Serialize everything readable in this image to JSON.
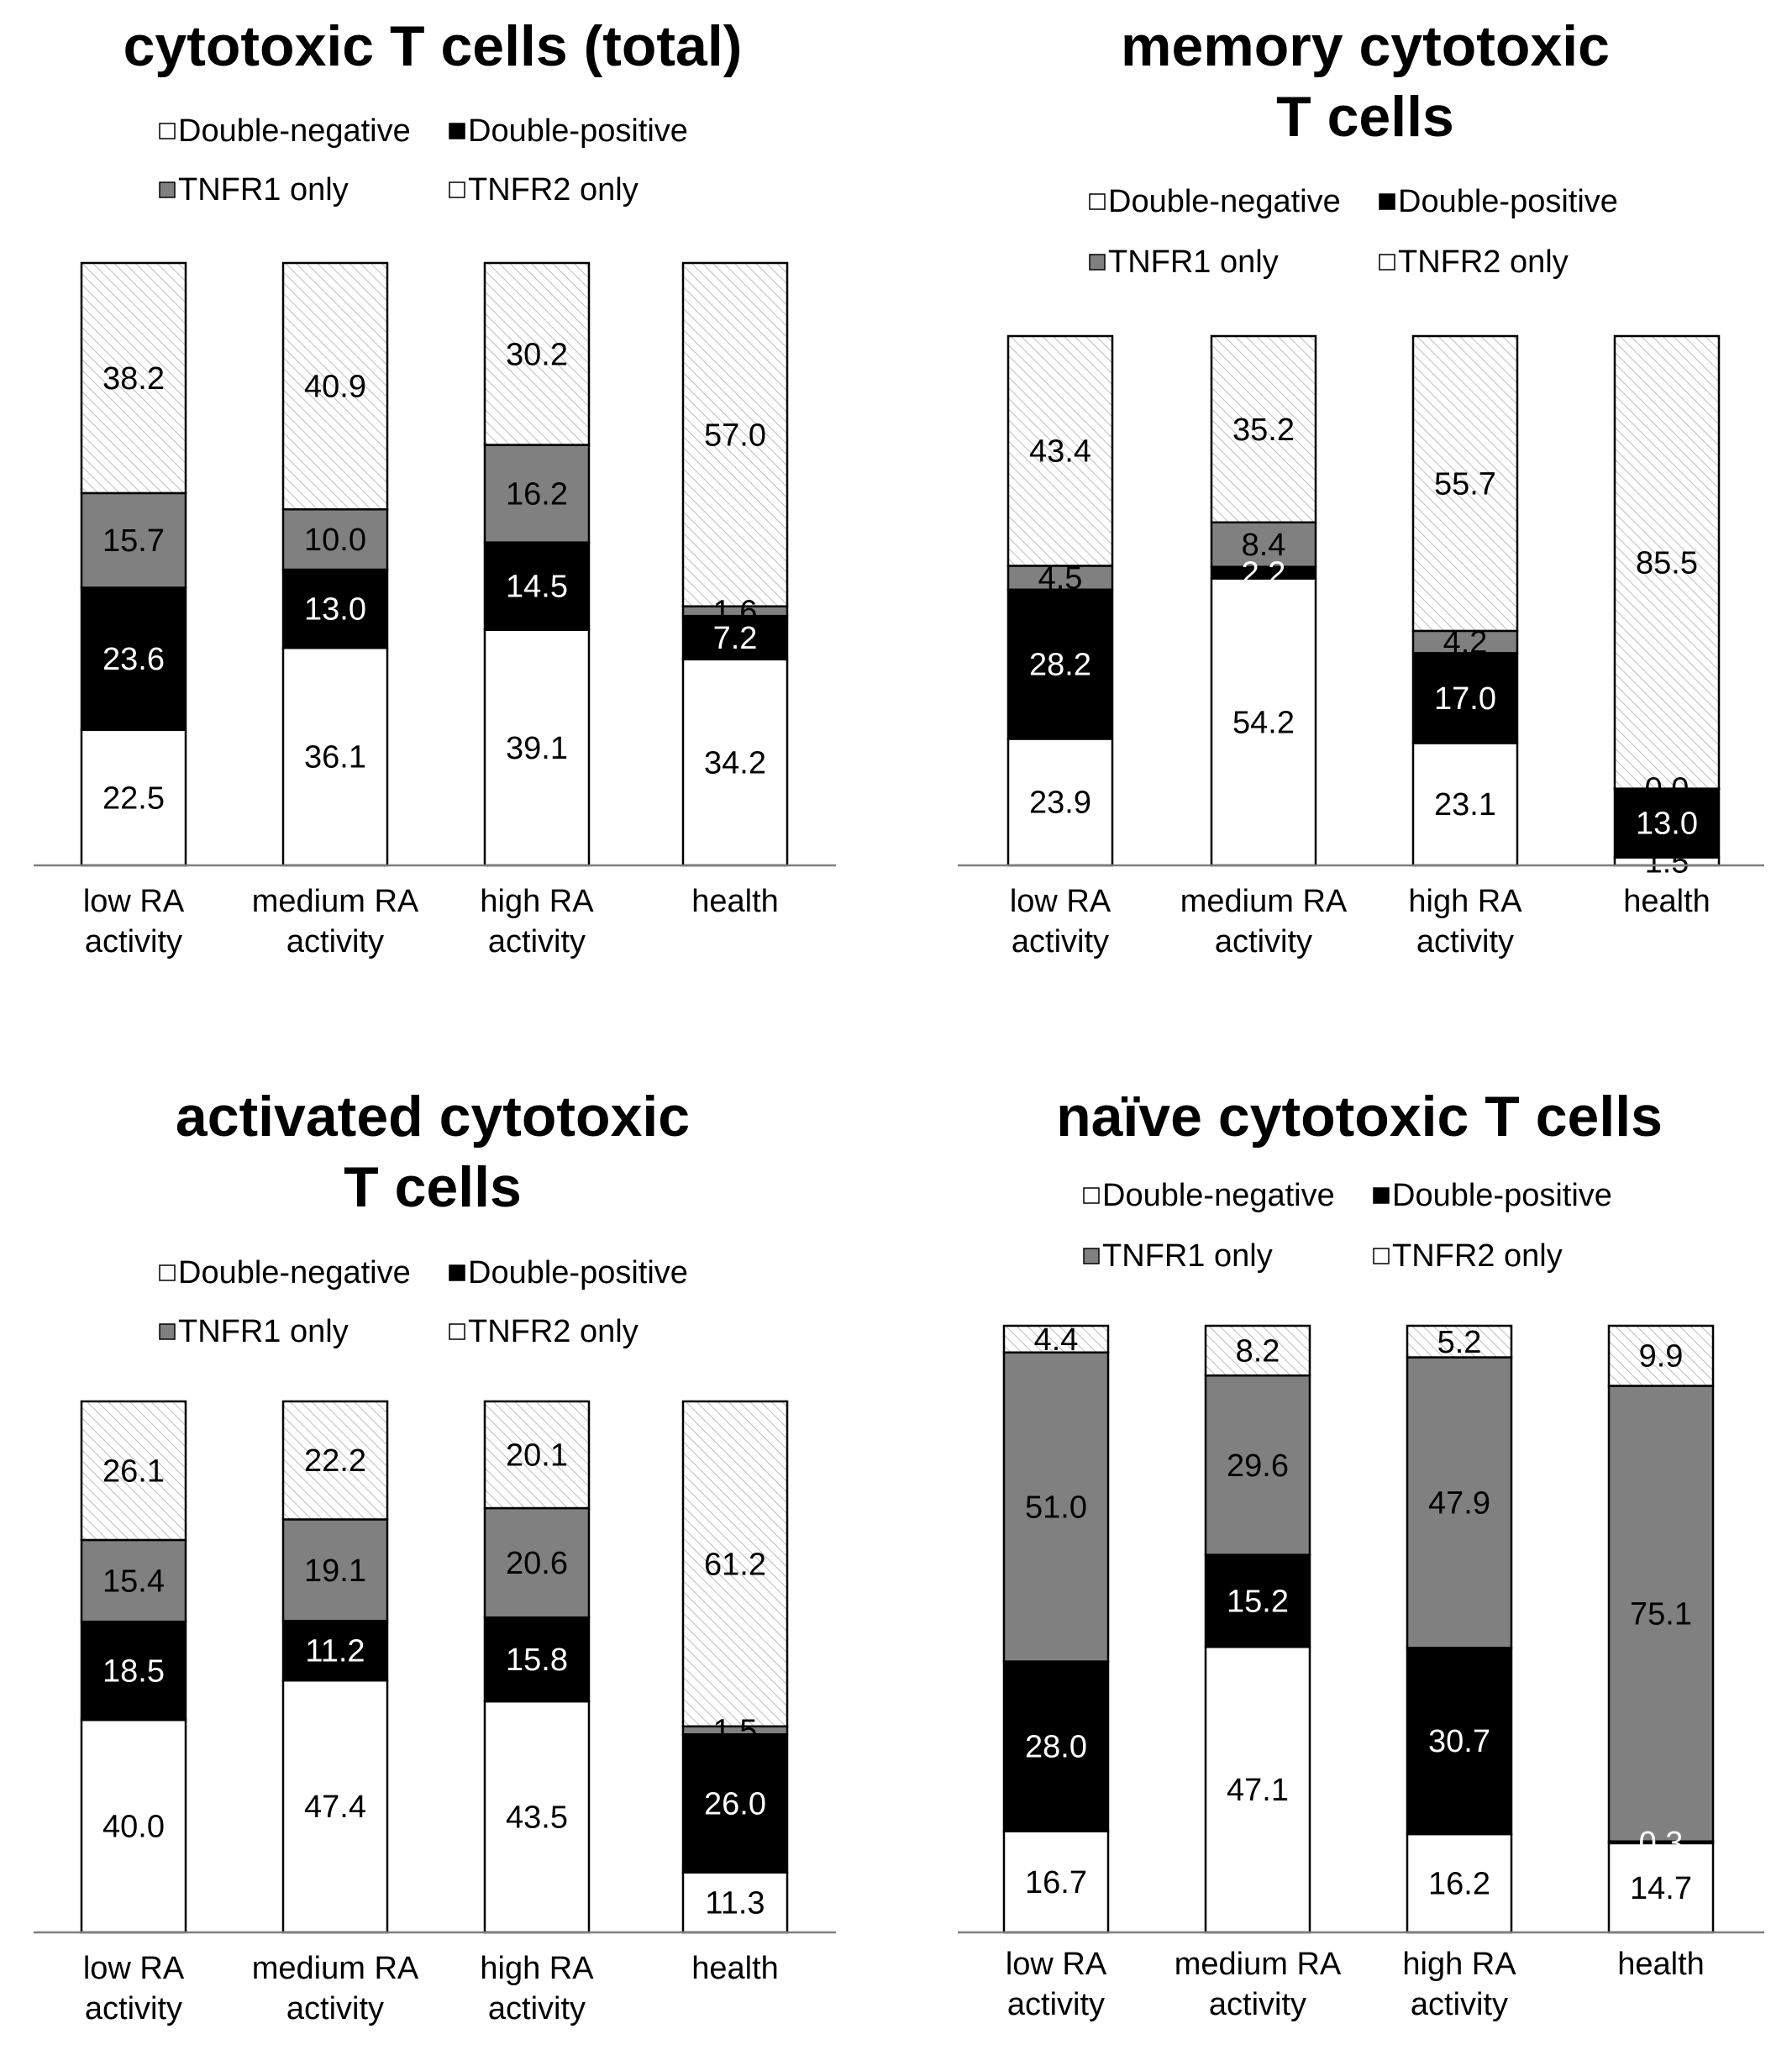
{
  "colors": {
    "double_negative": "#ffffff",
    "double_positive": "#000000",
    "tnfr1_only": "#808080",
    "tnfr2_only_fill": "#ffffff",
    "tnfr2_only_hatch": "#bdbdbd",
    "axis": "#7f7f7f",
    "outline": "#000000"
  },
  "chart_data": [
    {
      "type": "bar",
      "stacked": true,
      "title": "cytotoxic T cells (total)",
      "title_lines": [
        "cytotoxic T cells (total)"
      ],
      "legend": [
        "Double-negative",
        "Double-positive",
        "TNFR1 only",
        "TNFR2 only"
      ],
      "legend_position": "top",
      "categories": [
        [
          "low RA",
          "activity"
        ],
        [
          "medium RA",
          "activity"
        ],
        [
          "high RA",
          "activity"
        ],
        [
          "health"
        ]
      ],
      "ylim": [
        0,
        100
      ],
      "series": [
        {
          "name": "Double-negative",
          "values": [
            22.5,
            36.1,
            39.1,
            34.2
          ],
          "labels": [
            "22.5",
            "36.1",
            "39.1",
            "34.2"
          ]
        },
        {
          "name": "Double-positive",
          "values": [
            23.6,
            13.0,
            14.5,
            7.2
          ],
          "labels": [
            "23.6",
            "13.0",
            "14.5",
            "7.2"
          ]
        },
        {
          "name": "TNFR1 only",
          "values": [
            15.7,
            10.0,
            16.2,
            1.6
          ],
          "labels": [
            "15.7",
            "10.0",
            "16.2",
            "1.6"
          ]
        },
        {
          "name": "TNFR2 only",
          "values": [
            38.2,
            40.9,
            30.2,
            57.0
          ],
          "labels": [
            "38.2",
            "40.9",
            "30.2",
            "57.0"
          ]
        }
      ]
    },
    {
      "type": "bar",
      "stacked": true,
      "title": "memory cytotoxic T cells",
      "title_lines": [
        "memory cytotoxic",
        "T cells"
      ],
      "legend": [
        "Double-negative",
        "Double-positive",
        "TNFR1 only",
        "TNFR2 only"
      ],
      "legend_position": "top",
      "categories": [
        [
          "low RA",
          "activity"
        ],
        [
          "medium RA",
          "activity"
        ],
        [
          "high RA",
          "activity"
        ],
        [
          "health"
        ]
      ],
      "ylim": [
        0,
        100
      ],
      "series": [
        {
          "name": "Double-negative",
          "values": [
            23.9,
            54.2,
            23.1,
            1.5
          ],
          "labels": [
            "23.9",
            "54.2",
            "23.1",
            "1.5"
          ]
        },
        {
          "name": "Double-positive",
          "values": [
            28.2,
            2.2,
            17.0,
            13.0
          ],
          "labels": [
            "28.2",
            "2.2",
            "17.0",
            "13.0"
          ]
        },
        {
          "name": "TNFR1 only",
          "values": [
            4.5,
            8.4,
            4.2,
            0.0
          ],
          "labels": [
            "4.5",
            "8.4",
            "4.2",
            "0.0"
          ]
        },
        {
          "name": "TNFR2 only",
          "values": [
            43.4,
            35.2,
            55.7,
            85.5
          ],
          "labels": [
            "43.4",
            "35.2",
            "55.7",
            "85.5"
          ]
        }
      ]
    },
    {
      "type": "bar",
      "stacked": true,
      "title": "activated cytotoxic T cells",
      "title_lines": [
        "activated cytotoxic",
        "T cells"
      ],
      "legend": [
        "Double-negative",
        "Double-positive",
        "TNFR1 only",
        "TNFR2 only"
      ],
      "legend_position": "top",
      "categories": [
        [
          "low RA",
          "activity"
        ],
        [
          "medium RA",
          "activity"
        ],
        [
          "high RA",
          "activity"
        ],
        [
          "health"
        ]
      ],
      "ylim": [
        0,
        100
      ],
      "series": [
        {
          "name": "Double-negative",
          "values": [
            40.0,
            47.4,
            43.5,
            11.3
          ],
          "labels": [
            "40.0",
            "47.4",
            "43.5",
            "11.3"
          ]
        },
        {
          "name": "Double-positive",
          "values": [
            18.5,
            11.2,
            15.8,
            26.0
          ],
          "labels": [
            "18.5",
            "11.2",
            "15.8",
            "26.0"
          ]
        },
        {
          "name": "TNFR1 only",
          "values": [
            15.4,
            19.1,
            20.6,
            1.5
          ],
          "labels": [
            "15.4",
            "19.1",
            "20.6",
            "1.5"
          ]
        },
        {
          "name": "TNFR2 only",
          "values": [
            26.1,
            22.2,
            20.1,
            61.2
          ],
          "labels": [
            "26.1",
            "22.2",
            "20.1",
            "61.2"
          ]
        }
      ]
    },
    {
      "type": "bar",
      "stacked": true,
      "title": "naïve cytotoxic T cells",
      "title_lines": [
        "naïve cytotoxic T cells"
      ],
      "legend": [
        "Double-negative",
        "Double-positive",
        "TNFR1 only",
        "TNFR2 only"
      ],
      "legend_position": "top",
      "categories": [
        [
          "low RA",
          "activity"
        ],
        [
          "medium RA",
          "activity"
        ],
        [
          "high RA",
          "activity"
        ],
        [
          "health"
        ]
      ],
      "ylim": [
        0,
        100
      ],
      "series": [
        {
          "name": "Double-negative",
          "values": [
            16.7,
            47.1,
            16.2,
            14.7
          ],
          "labels": [
            "16.7",
            "47.1",
            "16.2",
            "14.7"
          ]
        },
        {
          "name": "Double-positive",
          "values": [
            28.0,
            15.2,
            30.7,
            0.3
          ],
          "labels": [
            "28.0",
            "15.2",
            "30.7",
            "0.3"
          ]
        },
        {
          "name": "TNFR1 only",
          "values": [
            51.0,
            29.6,
            47.9,
            75.1
          ],
          "labels": [
            "51.0",
            "29.6",
            "47.9",
            "75.1"
          ]
        },
        {
          "name": "TNFR2 only",
          "values": [
            4.4,
            8.2,
            5.2,
            9.9
          ],
          "labels": [
            "4.4",
            "8.2",
            "5.2",
            "9.9"
          ]
        }
      ]
    }
  ]
}
